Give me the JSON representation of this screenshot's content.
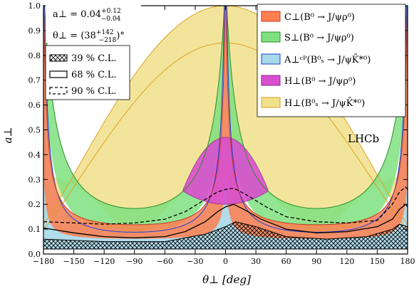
{
  "chart_data": {
    "type": "area",
    "xlabel": "θ⊥ [deg]",
    "ylabel": "a⊥",
    "xlim": [
      -180,
      180
    ],
    "ylim": [
      0,
      1
    ],
    "xticks": [
      -180,
      -150,
      -120,
      -90,
      -60,
      -30,
      0,
      30,
      60,
      90,
      120,
      150,
      180
    ],
    "xtick_labels": [
      "−180",
      "−150",
      "−120",
      "−90",
      "−60",
      "−30",
      "0",
      "30",
      "60",
      "90",
      "120",
      "150",
      "180"
    ],
    "yticks": [
      0,
      0.1,
      0.2,
      0.3,
      0.4,
      0.5,
      0.6,
      0.7,
      0.8,
      0.9,
      1.0
    ],
    "ytick_labels": [
      "0.0",
      "0.1",
      "0.2",
      "0.3",
      "0.4",
      "0.5",
      "0.6",
      "0.7",
      "0.8",
      "0.9",
      "1.0"
    ],
    "watermark": "LHCb",
    "fit_result": {
      "a_line": "a⊥ = 0.04",
      "a_sup": "+0.12",
      "a_sub": "−0.04",
      "theta_line": "θ⊥ = (38",
      "theta_sup": "+142",
      "theta_sub": "−218",
      "theta_end": ")°"
    },
    "cl_legend": [
      {
        "label": "39 % C.L.",
        "style": "hatch"
      },
      {
        "label": "68 % C.L.",
        "style": "solid"
      },
      {
        "label": "90 % C.L.",
        "style": "dashed"
      }
    ],
    "legend": {
      "placement": "top-right",
      "entries": [
        {
          "label": "C⊥(B⁰ → J/ψρ⁰)",
          "color": "#ff7f50"
        },
        {
          "label": "S⊥(B⁰ → J/ψρ⁰)",
          "color": "#7fe07f"
        },
        {
          "label": "A⊥ᶜᴾ(B⁰ₛ → J/ψK̄*⁰)",
          "color": "#a8d8ea"
        },
        {
          "label": "H⊥(B⁰ → J/ψρ⁰)",
          "color": "#d94fd0"
        },
        {
          "label": "H⊥(B⁰ₛ → J/ψK̄*⁰)",
          "color": "#f0e08a"
        }
      ]
    },
    "colors": {
      "c_band": "#ff7f50",
      "c_edge": "#c0392b",
      "s_band": "#7fe07f",
      "s_edge": "#2e8b2e",
      "acp_band": "#a8d8ea",
      "acp_edge": "#1f3fcf",
      "h_rho_band": "#d94fd0",
      "h_rho_edge": "#8e2a8a",
      "h_ks_band": "#f0e08a",
      "h_ks_edge": "#e0a020"
    },
    "contours": {
      "cl68": [
        [
          -180,
          0.105
        ],
        [
          -150,
          0.085
        ],
        [
          -120,
          0.07
        ],
        [
          -90,
          0.065
        ],
        [
          -60,
          0.07
        ],
        [
          -40,
          0.09
        ],
        [
          -20,
          0.13
        ],
        [
          -8,
          0.17
        ],
        [
          0,
          0.19
        ],
        [
          8,
          0.2
        ],
        [
          18,
          0.18
        ],
        [
          35,
          0.14
        ],
        [
          60,
          0.1
        ],
        [
          90,
          0.085
        ],
        [
          120,
          0.09
        ],
        [
          150,
          0.11
        ],
        [
          165,
          0.14
        ],
        [
          172,
          0.18
        ],
        [
          178,
          0.2
        ],
        [
          180,
          0.19
        ]
      ],
      "cl90": [
        [
          -180,
          0.13
        ],
        [
          -150,
          0.125
        ],
        [
          -120,
          0.12
        ],
        [
          -90,
          0.125
        ],
        [
          -60,
          0.14
        ],
        [
          -40,
          0.17
        ],
        [
          -20,
          0.22
        ],
        [
          -8,
          0.25
        ],
        [
          0,
          0.26
        ],
        [
          8,
          0.265
        ],
        [
          20,
          0.24
        ],
        [
          40,
          0.19
        ],
        [
          60,
          0.15
        ],
        [
          90,
          0.13
        ],
        [
          120,
          0.125
        ],
        [
          150,
          0.135
        ],
        [
          165,
          0.2
        ],
        [
          172,
          0.25
        ],
        [
          178,
          0.27
        ],
        [
          180,
          0.26
        ]
      ],
      "cl39_lower": [
        [
          -180,
          0.02
        ],
        [
          180,
          0.02
        ]
      ],
      "cl39_upper": [
        [
          -180,
          0.06
        ],
        [
          -120,
          0.05
        ],
        [
          -60,
          0.05
        ],
        [
          -20,
          0.08
        ],
        [
          0,
          0.11
        ],
        [
          10,
          0.13
        ],
        [
          30,
          0.11
        ],
        [
          60,
          0.07
        ],
        [
          100,
          0.06
        ],
        [
          140,
          0.07
        ],
        [
          165,
          0.1
        ],
        [
          172,
          0.12
        ],
        [
          180,
          0.11
        ]
      ]
    }
  }
}
